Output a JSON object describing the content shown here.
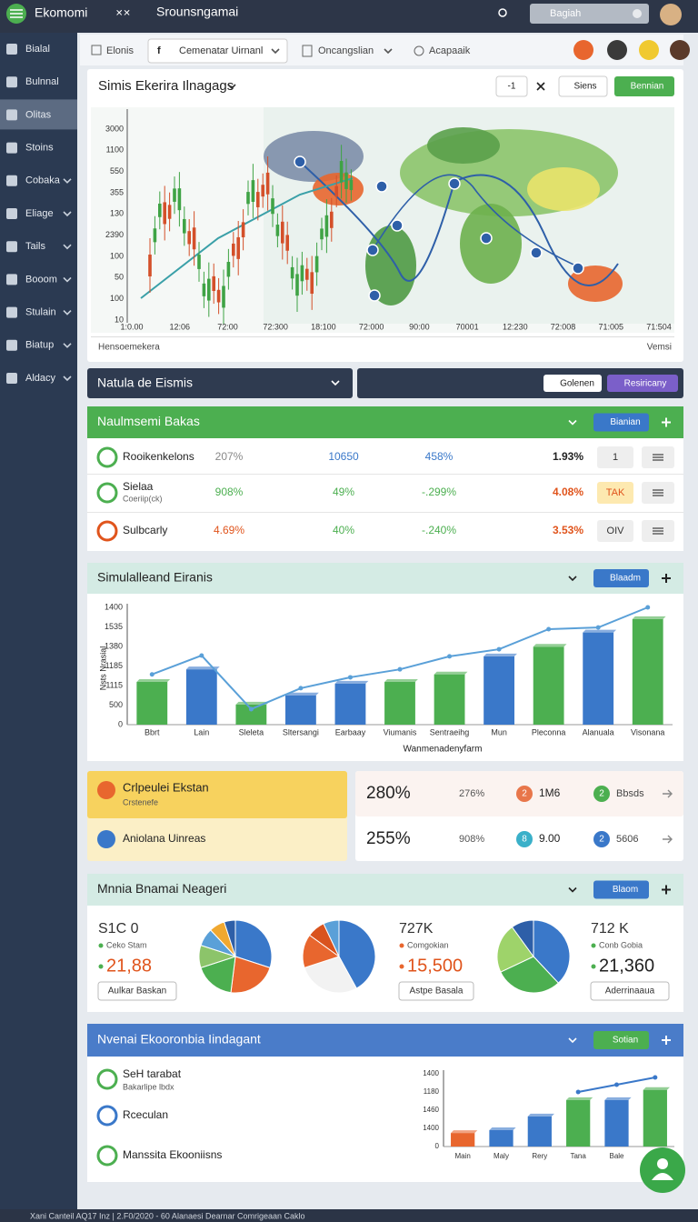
{
  "topbar": {
    "brand": "Ekomomi",
    "icon": "✕✕",
    "title": "Srounsngamai",
    "search": "Bagiah"
  },
  "sidebar": {
    "items": [
      "Bialal",
      "Bulnnal",
      "Olitas",
      "Stoins",
      "Cobaka",
      "Eliage",
      "Tails",
      "Booom",
      "Stulain",
      "Biatup",
      "Aldacy"
    ],
    "active": 2
  },
  "toolbar": {
    "home": "Elonis",
    "icon": "f",
    "select": "Cemenatar Uirnanl",
    "menu": "Oncangslian",
    "link": "Acapaaik"
  },
  "market_panel": {
    "title": "Simis Ekerira Ilnagags",
    "counter": "-1",
    "btn_view": "Siens",
    "btn_main": "Bennian",
    "y_labels": [
      "3000",
      "1100",
      "550",
      "355",
      "130",
      "2390",
      "100",
      "50",
      "100",
      "10"
    ],
    "x_labels": [
      "1:0.00",
      "12:06",
      "72:00",
      "72:300",
      "18:100",
      "72:000",
      "90:00",
      "70001",
      "12:230",
      "72:008",
      "71:005",
      "71:504"
    ],
    "footer_left": "Hensoemekera",
    "footer_right": "Vemsi"
  },
  "filter_bar": {
    "label": "Natula de Eismis",
    "btn_1": "Golenen",
    "btn_2": "Resiricany"
  },
  "metrics_panel": {
    "title": "Naulmsemi Bakas",
    "button": "Bianian",
    "rows": [
      {
        "name": "Rooikenkelons",
        "icon_color": "#4caf50",
        "cells": [
          "207%",
          "10650",
          "458%",
          "1.93%"
        ],
        "colors": [
          "#888888",
          "#3a78c9",
          "#3a78c9",
          "#222222"
        ],
        "action": "1"
      },
      {
        "name": "Sielaa",
        "sub": "Coeriip(ck)",
        "icon_color": "#4caf50",
        "cells": [
          "908%",
          "49%",
          "-.299%",
          "4.08%"
        ],
        "colors": [
          "#4caf50",
          "#4caf50",
          "#4caf50",
          "#e0541c"
        ],
        "action": "TAK"
      },
      {
        "name": "Sulbcarly",
        "icon_color": "#e0541c",
        "cells": [
          "4.69%",
          "40%",
          "-.240%",
          "3.53%"
        ],
        "colors": [
          "#e0541c",
          "#4caf50",
          "#4caf50",
          "#e0541c"
        ],
        "action": "OIV"
      }
    ]
  },
  "sim_panel": {
    "title": "Simulalleand Eiranis",
    "button": "Blaadm",
    "chart": {
      "type": "bar",
      "y_title": "Nsts Nrasial",
      "x_title": "Wanmenadenyfarm",
      "y_labels": [
        "1400",
        "1535",
        "1380",
        "1185",
        "1115",
        "500",
        "0"
      ],
      "ylim": [
        0,
        1400
      ],
      "categories": [
        "Bbrt",
        "Lain",
        "Sleleta",
        "Sltersangi",
        "Earbaay",
        "Viumanis",
        "Sentraeihg",
        "Mun",
        "Pleconna",
        "Alanuala",
        "Visonana"
      ],
      "values": [
        510,
        660,
        240,
        350,
        490,
        510,
        600,
        815,
        930,
        1100,
        1260
      ],
      "colors": [
        "#4caf50",
        "#3a78c9",
        "#4caf50",
        "#3a78c9",
        "#3a78c9",
        "#4caf50",
        "#4caf50",
        "#3a78c9",
        "#4caf50",
        "#3a78c9",
        "#4caf50"
      ],
      "line": {
        "color": "#5aa0d8",
        "values": [
          600,
          825,
          185,
          435,
          565,
          660,
          815,
          900,
          1140,
          1160,
          1400
        ]
      }
    }
  },
  "cards": {
    "left": [
      {
        "title": "Crlpeulei Ekstan",
        "sub": "Crstenefe"
      },
      {
        "title": "Aniolana Uinreas"
      }
    ],
    "right": [
      {
        "value": "280%",
        "pct": "276%",
        "badge1": "2",
        "text1": "1M6",
        "badge2": "2",
        "text2": "Bbsds"
      },
      {
        "value": "255%",
        "pct": "908%",
        "badge1": "8",
        "text1": "9.00",
        "badge2": "2",
        "text2": "5606"
      }
    ]
  },
  "pie_panel": {
    "title": "Mnnia Bnamai Neageri",
    "button": "Blaom",
    "groups": [
      {
        "head": "S1C 0",
        "legend": "Ceko Stam",
        "value": "21,88",
        "button": "Aulkar Baskan",
        "slices": [
          30,
          22,
          18,
          10,
          8,
          7,
          5
        ],
        "colors": [
          "#3a78c9",
          "#e8662e",
          "#4caf50",
          "#8cc46a",
          "#5aa0d8",
          "#f0a830",
          "#2e5fa8"
        ]
      },
      {
        "head": "727K",
        "legend": "Comgokian",
        "value": "15,500",
        "button": "Astpe Basala",
        "slices": [
          42,
          28,
          15,
          8,
          7
        ],
        "colors": [
          "#3a78c9",
          "#f2f2f2",
          "#e8662e",
          "#d9531e",
          "#5aa0d8"
        ]
      },
      {
        "head": "712 K",
        "legend": "Conb Gobia",
        "value": "21,360",
        "button": "Aderrinaaua",
        "slices": [
          38,
          30,
          22,
          10
        ],
        "colors": [
          "#3a78c9",
          "#4caf50",
          "#9ed36a",
          "#2e5fa8"
        ]
      }
    ]
  },
  "econ_panel": {
    "title": "Nvenai Ekooronbia Iindagant",
    "button": "Sotian",
    "items": [
      {
        "title": "SeH tarabat",
        "sub": "Bakarlipe lbdx"
      },
      {
        "title": "Rceculan"
      },
      {
        "title": "Manssita Ekooniisns"
      }
    ],
    "chart": {
      "type": "bar",
      "y_labels": [
        "1400",
        "1180",
        "1460",
        "1400",
        "0"
      ],
      "ylim": [
        0,
        1400
      ],
      "categories": [
        "Main",
        "Maly",
        "Rery",
        "Tana",
        "Bale",
        null
      ],
      "values": [
        260,
        315,
        580,
        895,
        895,
        1090
      ],
      "colors": [
        "#e8662e",
        "#3a78c9",
        "#3a78c9",
        "#4caf50",
        "#3a78c9",
        "#4caf50"
      ],
      "line": {
        "color": "#3a78c9",
        "values": [
          null,
          null,
          null,
          1050,
          1190,
          1330
        ]
      }
    }
  },
  "footer": "Xani Canteil AQ17 Inz | 2.F0/2020 - 60 Alanaesi Dearnar Comrigeaan Caklo"
}
